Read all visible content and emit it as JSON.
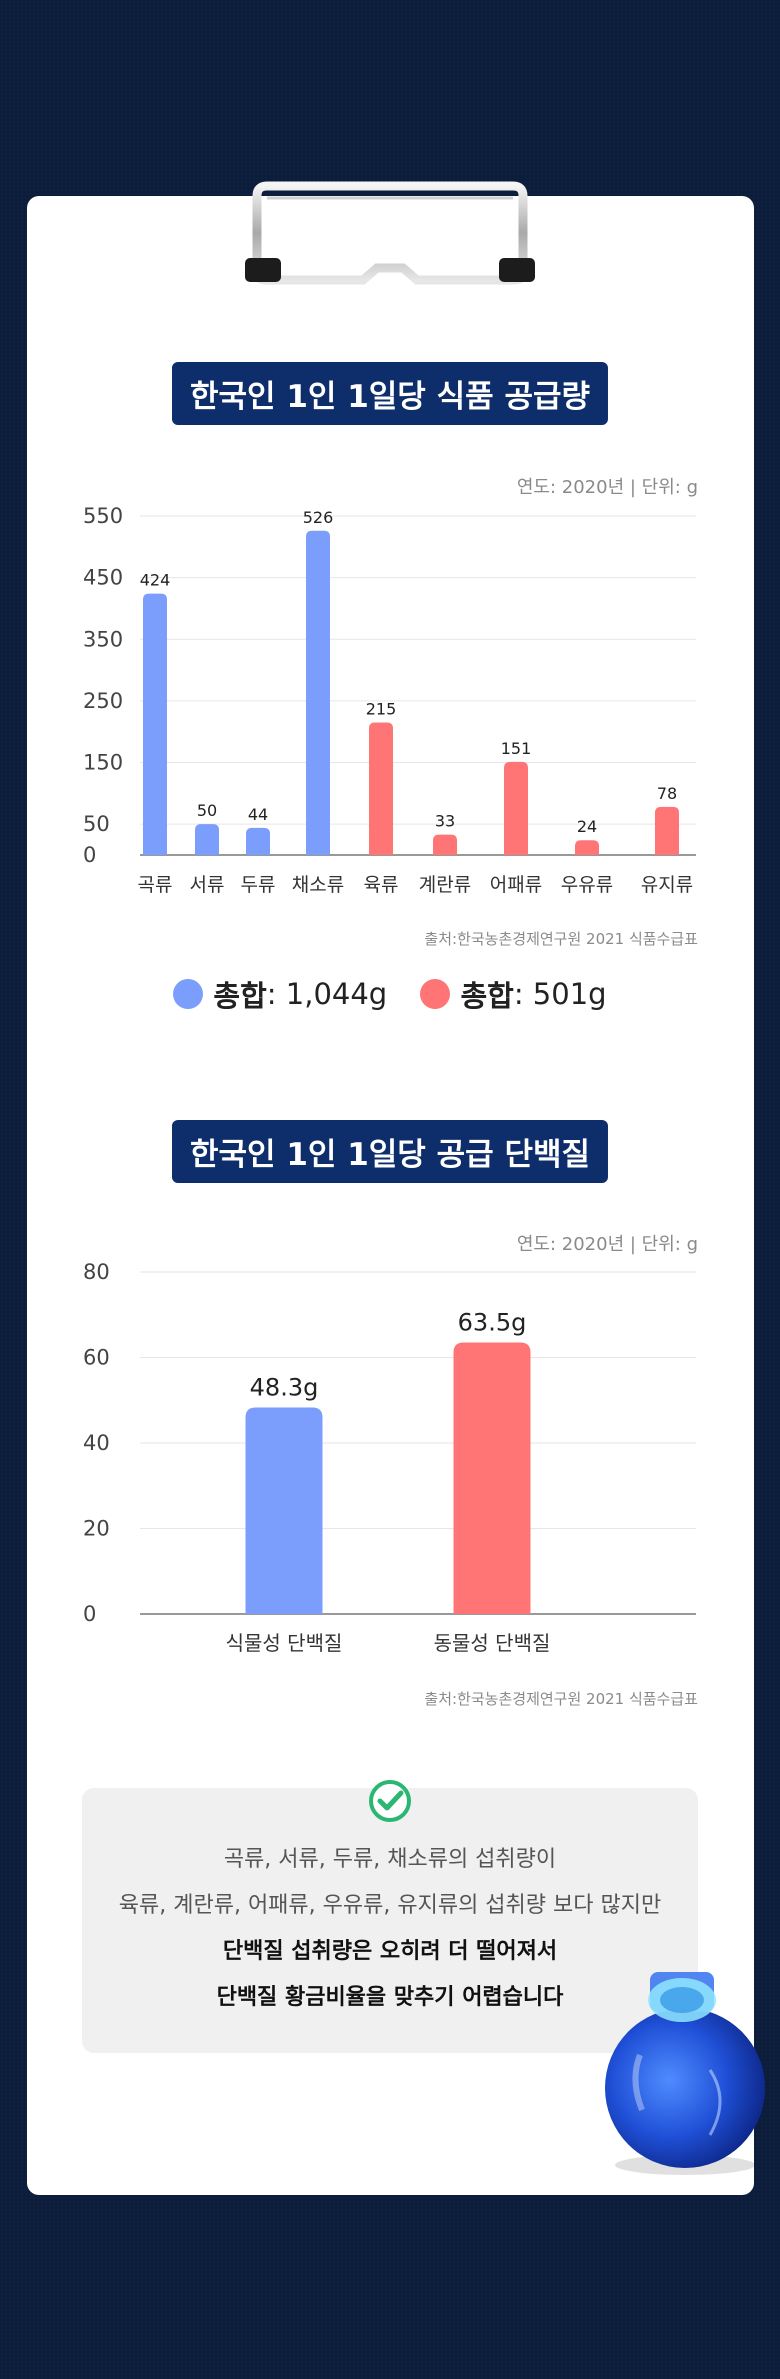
{
  "chart1": {
    "title": "한국인 1인 1일당 식품 공급량",
    "meta": "연도: 2020년 | 단위: g",
    "source": "출처:한국농촌경제연구원 2021 식품수급표",
    "legend": [
      {
        "label": "총합",
        "value": " : 1,044g",
        "color": "#7b9dfc"
      },
      {
        "label": "총합",
        "value": " : 501g",
        "color": "#ff7474"
      }
    ]
  },
  "chart2": {
    "title": "한국인 1인 1일당 공급 단백질",
    "meta": "연도: 2020년 | 단위: g",
    "source": "출처:한국농촌경제연구원 2021 식품수급표"
  },
  "chart_data": [
    {
      "type": "bar",
      "title": "한국인 1인 1일당 식품 공급량",
      "categories": [
        "곡류",
        "서류",
        "두류",
        "채소류",
        "육류",
        "계란류",
        "어패류",
        "우유류",
        "유지류"
      ],
      "values": [
        424,
        50,
        44,
        526,
        215,
        33,
        151,
        24,
        78
      ],
      "colors": [
        "#7b9dfc",
        "#7b9dfc",
        "#7b9dfc",
        "#7b9dfc",
        "#ff7474",
        "#ff7474",
        "#ff7474",
        "#ff7474",
        "#ff7474"
      ],
      "y_ticks": [
        0,
        50,
        150,
        250,
        350,
        450,
        550
      ],
      "ylim": [
        0,
        550
      ],
      "grid": true
    },
    {
      "type": "bar",
      "title": "한국인 1인 1일당 공급 단백질",
      "categories": [
        "식물성 단백질",
        "동물성 단백질"
      ],
      "values": [
        48.3,
        63.5
      ],
      "value_labels": [
        "48.3g",
        "63.5g"
      ],
      "colors": [
        "#7b9dfc",
        "#ff7474"
      ],
      "y_ticks": [
        0,
        20,
        40,
        60,
        80
      ],
      "ylim": [
        0,
        80
      ],
      "grid": true
    }
  ],
  "note": {
    "line1": "곡류, 서류, 두류, 채소류의 섭취량이",
    "line2": "육류, 계란류, 어패류, 우유류, 유지류의 섭취량 보다 많지만",
    "line3": "단백질 섭취량은 오히려 더 떨어져서",
    "line4": "단백질 황금비율을 맞추기 어렵습니다"
  }
}
